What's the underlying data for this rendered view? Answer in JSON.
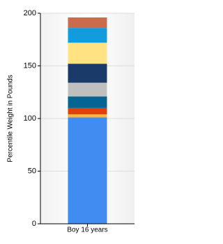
{
  "chart_data": {
    "type": "stacked-bar",
    "y_label": "Percentile Weight in Pounds",
    "categories": [
      "Boy 16 years"
    ],
    "series": [
      {
        "color": "#418cf0",
        "values": [
          101
        ]
      },
      {
        "color": "#fcb441",
        "values": [
          3
        ]
      },
      {
        "color": "#e0400a",
        "values": [
          6
        ]
      },
      {
        "color": "#056492",
        "values": [
          11
        ]
      },
      {
        "color": "#bfbfbf",
        "values": [
          13
        ]
      },
      {
        "color": "#1a3b69",
        "values": [
          18
        ]
      },
      {
        "color": "#ffe382",
        "values": [
          20
        ]
      },
      {
        "color": "#129cdd",
        "values": [
          14
        ]
      },
      {
        "color": "#ca6b4b",
        "values": [
          10
        ]
      }
    ],
    "ylim": [
      0,
      200
    ],
    "yticks": [
      0,
      50,
      100,
      150,
      200
    ],
    "grid": true
  }
}
